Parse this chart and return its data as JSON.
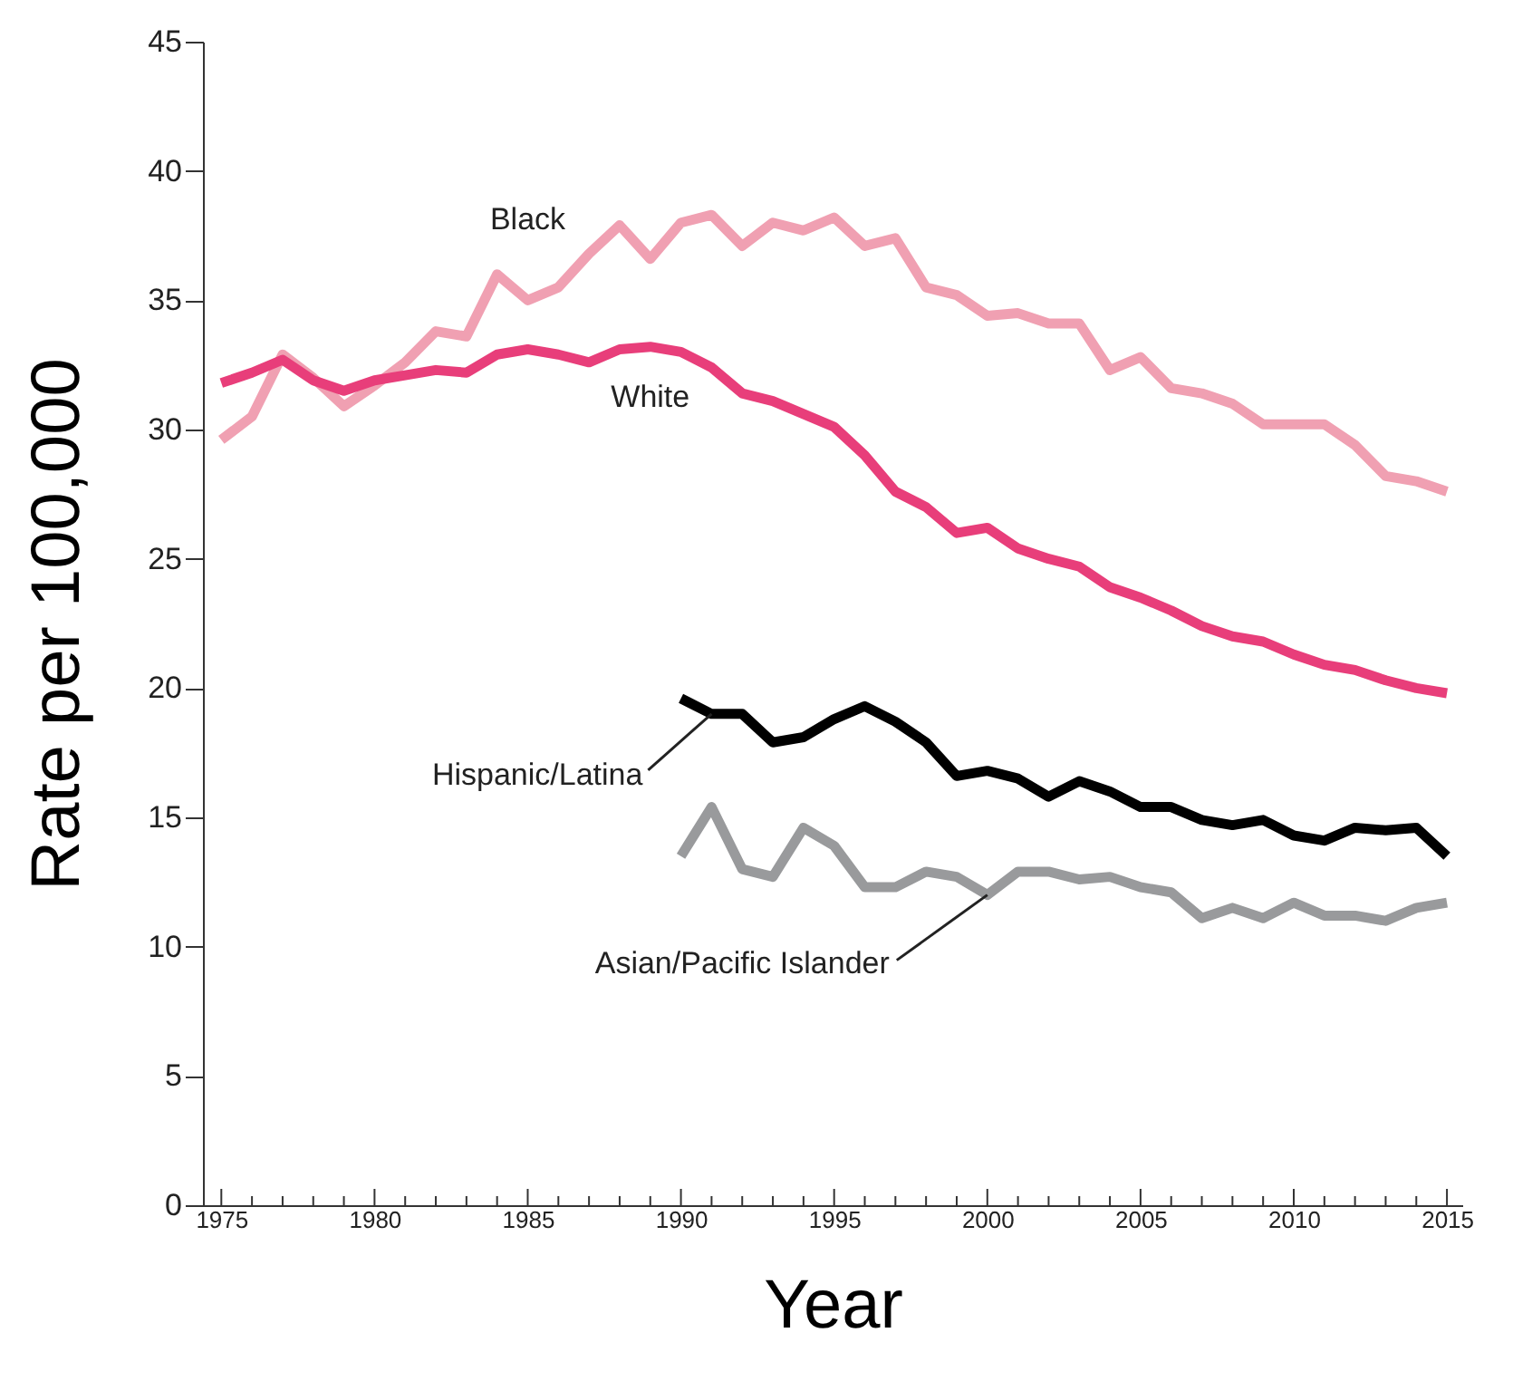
{
  "chart_data": {
    "type": "line",
    "xlabel": "Year",
    "ylabel": "Rate per 100,000",
    "xlim": [
      1974.4,
      2015.5
    ],
    "ylim": [
      0,
      45
    ],
    "yticks": [
      0,
      5,
      10,
      15,
      20,
      25,
      30,
      35,
      40,
      45
    ],
    "xticks": [
      1975,
      {
        "value": 1976,
        "label": null
      },
      {
        "value": 1977,
        "label": null
      },
      {
        "value": 1978,
        "label": null
      },
      {
        "value": 1979,
        "label": null
      },
      1980,
      {
        "value": 1981,
        "label": null
      },
      {
        "value": 1982,
        "label": null
      },
      {
        "value": 1983,
        "label": null
      },
      {
        "value": 1984,
        "label": null
      },
      1985,
      {
        "value": 1986,
        "label": null
      },
      {
        "value": 1987,
        "label": null
      },
      {
        "value": 1988,
        "label": null
      },
      {
        "value": 1989,
        "label": null
      },
      1990,
      {
        "value": 1991,
        "label": null
      },
      {
        "value": 1992,
        "label": null
      },
      {
        "value": 1993,
        "label": null
      },
      {
        "value": 1994,
        "label": null
      },
      1995,
      {
        "value": 1996,
        "label": null
      },
      {
        "value": 1997,
        "label": null
      },
      {
        "value": 1998,
        "label": null
      },
      {
        "value": 1999,
        "label": null
      },
      2000,
      {
        "value": 2001,
        "label": null
      },
      {
        "value": 2002,
        "label": null
      },
      {
        "value": 2003,
        "label": null
      },
      {
        "value": 2004,
        "label": null
      },
      2005,
      {
        "value": 2006,
        "label": null
      },
      {
        "value": 2007,
        "label": null
      },
      {
        "value": 2008,
        "label": null
      },
      {
        "value": 2009,
        "label": null
      },
      2010,
      {
        "value": 2011,
        "label": null
      },
      {
        "value": 2012,
        "label": null
      },
      {
        "value": 2013,
        "label": null
      },
      {
        "value": 2014,
        "label": null
      },
      2015
    ],
    "grid": false,
    "line_style": "solid",
    "marker": "none",
    "x": [
      1975,
      1976,
      1977,
      1978,
      1979,
      1980,
      1981,
      1982,
      1983,
      1984,
      1985,
      1986,
      1987,
      1988,
      1989,
      1990,
      1991,
      1992,
      1993,
      1994,
      1995,
      1996,
      1997,
      1998,
      1999,
      2000,
      2001,
      2002,
      2003,
      2004,
      2005,
      2006,
      2007,
      2008,
      2009,
      2010,
      2011,
      2012,
      2013,
      2014,
      2015
    ],
    "series": [
      {
        "name": "Black",
        "color": "#f0a0b2",
        "values": [
          29.6,
          30.5,
          32.9,
          32.0,
          30.9,
          31.7,
          32.6,
          33.8,
          33.6,
          36.0,
          35.0,
          35.5,
          36.8,
          37.9,
          36.6,
          38.0,
          38.3,
          37.1,
          38.0,
          37.7,
          38.2,
          37.1,
          37.4,
          35.5,
          35.2,
          34.4,
          34.5,
          34.1,
          34.1,
          32.3,
          32.8,
          31.6,
          31.4,
          31.0,
          30.2,
          30.2,
          30.2,
          29.4,
          28.2,
          28.0,
          27.6
        ]
      },
      {
        "name": "White",
        "color": "#e83e7a",
        "values": [
          31.8,
          32.2,
          32.7,
          31.9,
          31.5,
          31.9,
          32.1,
          32.3,
          32.2,
          32.9,
          33.1,
          32.9,
          32.6,
          33.1,
          33.2,
          33.0,
          32.4,
          31.4,
          31.1,
          30.6,
          30.1,
          29.0,
          27.6,
          27.0,
          26.0,
          26.2,
          25.4,
          25.0,
          24.7,
          23.9,
          23.5,
          23.0,
          22.4,
          22.0,
          21.8,
          21.3,
          20.9,
          20.7,
          20.3,
          20.0,
          19.8
        ]
      },
      {
        "name": "Hispanic/Latina",
        "color": "#000000",
        "x": [
          1990,
          1991,
          1992,
          1993,
          1994,
          1995,
          1996,
          1997,
          1998,
          1999,
          2000,
          2001,
          2002,
          2003,
          2004,
          2005,
          2006,
          2007,
          2008,
          2009,
          2010,
          2011,
          2012,
          2013,
          2014,
          2015
        ],
        "values": [
          19.6,
          19.0,
          19.0,
          17.9,
          18.1,
          18.8,
          19.3,
          18.7,
          17.9,
          16.6,
          16.8,
          16.5,
          15.8,
          16.4,
          16.0,
          15.4,
          15.4,
          14.9,
          14.7,
          14.9,
          14.3,
          14.1,
          14.6,
          14.5,
          14.6,
          13.5
        ]
      },
      {
        "name": "Asian/Pacific Islander",
        "color": "#999a9c",
        "x": [
          1990,
          1991,
          1992,
          1993,
          1994,
          1995,
          1996,
          1997,
          1998,
          1999,
          2000,
          2001,
          2002,
          2003,
          2004,
          2005,
          2006,
          2007,
          2008,
          2009,
          2010,
          2011,
          2012,
          2013,
          2014,
          2015
        ],
        "values": [
          13.5,
          15.4,
          13.0,
          12.7,
          14.6,
          13.9,
          12.3,
          12.3,
          12.9,
          12.7,
          12.0,
          12.9,
          12.9,
          12.6,
          12.7,
          12.3,
          12.1,
          11.1,
          11.5,
          11.1,
          11.7,
          11.2,
          11.2,
          11.0,
          11.5,
          11.7
        ]
      }
    ]
  }
}
